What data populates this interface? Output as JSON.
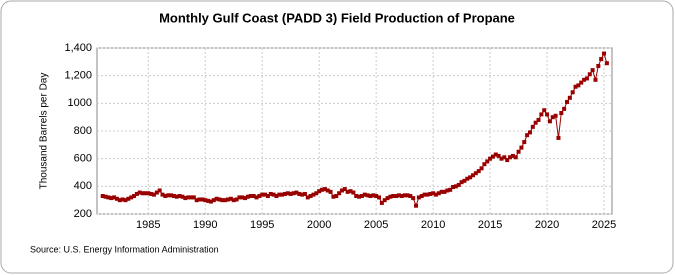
{
  "chart_data": {
    "type": "line",
    "title": "Monthly Gulf Coast (PADD 3) Field Production of Propane",
    "y_label": "Thousand Barrels per Day",
    "source": "Source: U.S. Energy Information Administration",
    "xlim": [
      1980.5,
      2025.7
    ],
    "xticks": [
      1985,
      1990,
      1995,
      2000,
      2005,
      2010,
      2015,
      2020,
      2025
    ],
    "ylim": [
      200,
      1400
    ],
    "yticks": [
      200,
      400,
      600,
      800,
      1000,
      {
        "value": 1200,
        "label": "1,200"
      },
      {
        "value": 1400,
        "label": "1,400"
      }
    ],
    "grid": true,
    "x": [
      1981,
      1981.25,
      1981.5,
      1981.75,
      1982,
      1982.25,
      1982.5,
      1982.75,
      1983,
      1983.25,
      1983.5,
      1983.75,
      1984,
      1984.25,
      1984.5,
      1984.75,
      1985,
      1985.25,
      1985.5,
      1985.75,
      1986,
      1986.25,
      1986.5,
      1986.75,
      1987,
      1987.25,
      1987.5,
      1987.75,
      1988,
      1988.25,
      1988.5,
      1988.75,
      1989,
      1989.25,
      1989.5,
      1989.75,
      1990,
      1990.25,
      1990.5,
      1990.75,
      1991,
      1991.25,
      1991.5,
      1991.75,
      1992,
      1992.25,
      1992.5,
      1992.75,
      1993,
      1993.25,
      1993.5,
      1993.75,
      1994,
      1994.25,
      1994.5,
      1994.75,
      1995,
      1995.25,
      1995.5,
      1995.75,
      1996,
      1996.25,
      1996.5,
      1996.75,
      1997,
      1997.25,
      1997.5,
      1997.75,
      1998,
      1998.25,
      1998.5,
      1998.75,
      1999,
      1999.25,
      1999.5,
      1999.75,
      2000,
      2000.25,
      2000.5,
      2000.75,
      2001,
      2001.25,
      2001.5,
      2001.75,
      2002,
      2002.25,
      2002.5,
      2002.75,
      2003,
      2003.25,
      2003.5,
      2003.75,
      2004,
      2004.25,
      2004.5,
      2004.75,
      2005,
      2005.25,
      2005.5,
      2005.75,
      2006,
      2006.25,
      2006.5,
      2006.75,
      2007,
      2007.25,
      2007.5,
      2007.75,
      2008,
      2008.25,
      2008.5,
      2008.75,
      2009,
      2009.25,
      2009.5,
      2009.75,
      2010,
      2010.25,
      2010.5,
      2010.75,
      2011,
      2011.25,
      2011.5,
      2011.75,
      2012,
      2012.25,
      2012.5,
      2012.75,
      2013,
      2013.25,
      2013.5,
      2013.75,
      2014,
      2014.25,
      2014.5,
      2014.75,
      2015,
      2015.25,
      2015.5,
      2015.75,
      2016,
      2016.25,
      2016.5,
      2016.75,
      2017,
      2017.25,
      2017.5,
      2017.75,
      2018,
      2018.25,
      2018.5,
      2018.75,
      2019,
      2019.25,
      2019.5,
      2019.75,
      2020,
      2020.25,
      2020.5,
      2020.75,
      2021,
      2021.25,
      2021.5,
      2021.75,
      2022,
      2022.25,
      2022.5,
      2022.75,
      2023,
      2023.25,
      2023.5,
      2023.75,
      2024,
      2024.25,
      2024.5,
      2024.75,
      2025,
      2025.25
    ],
    "series": [
      {
        "name": "Propane",
        "color": "#990000",
        "values": [
          330,
          325,
          320,
          315,
          320,
          310,
          300,
          305,
          300,
          310,
          320,
          330,
          345,
          355,
          350,
          350,
          350,
          345,
          340,
          355,
          370,
          340,
          330,
          335,
          335,
          330,
          325,
          330,
          325,
          315,
          320,
          320,
          320,
          300,
          305,
          305,
          300,
          295,
          290,
          300,
          310,
          305,
          300,
          300,
          305,
          310,
          300,
          305,
          320,
          320,
          315,
          325,
          330,
          330,
          320,
          330,
          340,
          340,
          330,
          345,
          340,
          330,
          340,
          340,
          345,
          350,
          345,
          350,
          355,
          345,
          340,
          345,
          320,
          330,
          340,
          350,
          365,
          375,
          380,
          370,
          360,
          325,
          330,
          350,
          370,
          380,
          360,
          365,
          355,
          330,
          325,
          330,
          340,
          335,
          330,
          335,
          330,
          320,
          280,
          300,
          315,
          325,
          330,
          330,
          335,
          330,
          335,
          335,
          330,
          315,
          260,
          320,
          330,
          340,
          340,
          345,
          350,
          340,
          350,
          360,
          360,
          370,
          375,
          395,
          400,
          410,
          430,
          440,
          455,
          465,
          480,
          495,
          510,
          530,
          560,
          580,
          600,
          615,
          630,
          620,
          600,
          610,
          590,
          610,
          620,
          610,
          650,
          680,
          720,
          770,
          790,
          830,
          860,
          880,
          920,
          950,
          920,
          870,
          900,
          910,
          750,
          930,
          960,
          1010,
          1040,
          1080,
          1120,
          1130,
          1150,
          1170,
          1180,
          1210,
          1240,
          1170,
          1270,
          1320,
          1360,
          1290
        ]
      }
    ]
  }
}
